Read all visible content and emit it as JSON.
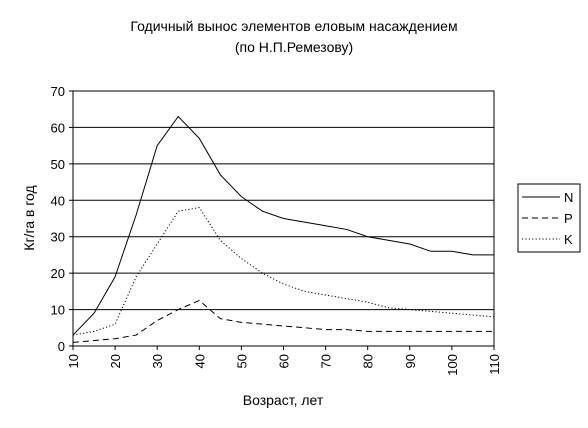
{
  "chart_data": {
    "type": "line",
    "title": "Годичный вынос элементов еловым насаждением",
    "subtitle": "(по Н.П.Ремезову)",
    "xlabel": "Возраст, лет",
    "ylabel": "Кг/га в год",
    "xlim": [
      10,
      110
    ],
    "ylim": [
      0,
      70
    ],
    "xticks": [
      "10",
      "20",
      "30",
      "40",
      "50",
      "60",
      "70",
      "80",
      "90",
      "100",
      "110"
    ],
    "yticks": [
      "0",
      "10",
      "20",
      "30",
      "40",
      "50",
      "60",
      "70"
    ],
    "grid": "horizontal",
    "legend_position": "right",
    "x": [
      10,
      15,
      20,
      25,
      30,
      35,
      40,
      45,
      50,
      55,
      60,
      65,
      70,
      75,
      80,
      85,
      90,
      95,
      100,
      105,
      110
    ],
    "series": [
      {
        "name": "N",
        "style": "solid",
        "values": [
          3,
          9,
          19,
          36,
          55,
          63,
          57,
          47,
          41,
          37,
          35,
          34,
          33,
          32,
          30,
          29,
          28,
          26,
          26,
          25,
          25
        ]
      },
      {
        "name": "P",
        "style": "dashed",
        "values": [
          1,
          1.5,
          2,
          3,
          7,
          10,
          12.5,
          7.5,
          6.5,
          6,
          5.5,
          5,
          4.5,
          4.5,
          4,
          4,
          4,
          4,
          4,
          4,
          4
        ]
      },
      {
        "name": "K",
        "style": "dotted",
        "values": [
          3,
          4,
          6,
          19,
          28,
          37,
          38,
          29,
          24,
          20,
          17,
          15,
          14,
          13,
          12,
          10.5,
          10,
          9.5,
          9,
          8.5,
          8
        ]
      }
    ]
  }
}
